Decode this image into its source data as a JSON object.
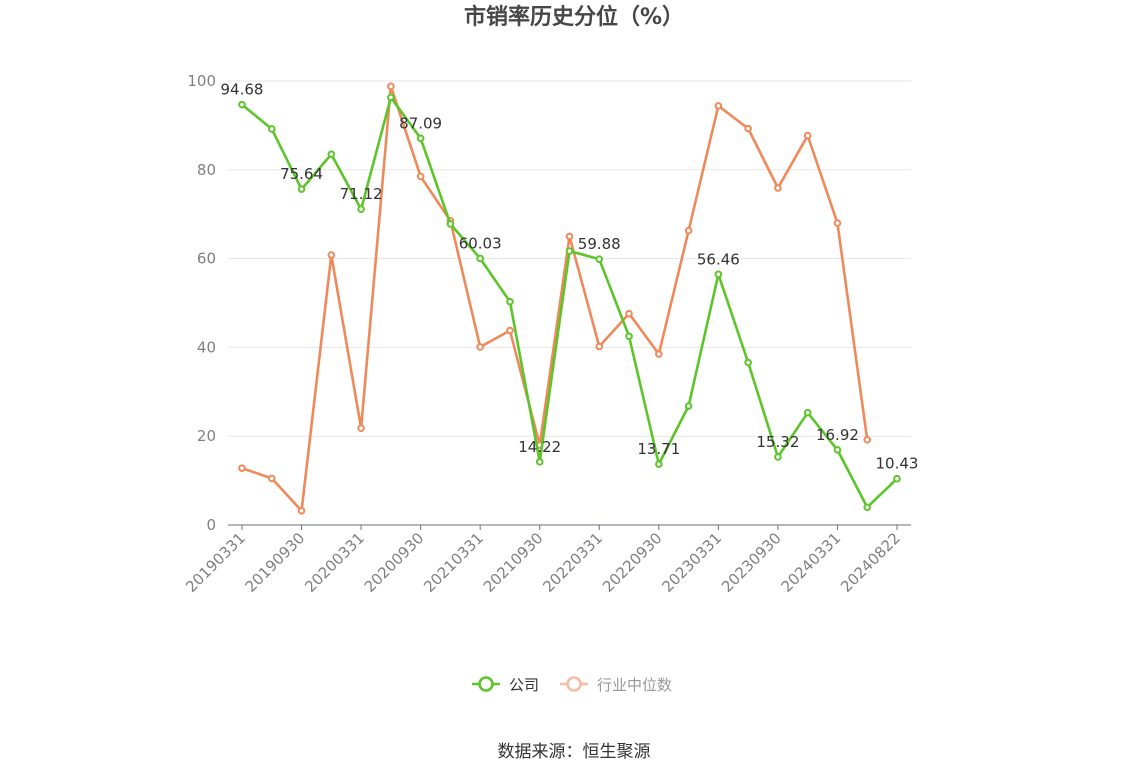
{
  "chart_data": {
    "type": "line",
    "title": "市销率历史分位（%）",
    "xlabel": "",
    "ylabel": "",
    "ylim": [
      0,
      100
    ],
    "yticks": [
      0,
      20,
      40,
      60,
      80,
      100
    ],
    "grid": true,
    "legend_position": "bottom-center",
    "x": [
      "20190331",
      "20190630",
      "20190930",
      "20191231",
      "20200331",
      "20200630",
      "20200930",
      "20201231",
      "20210331",
      "20210630",
      "20210930",
      "20211231",
      "20220331",
      "20220630",
      "20220930",
      "20221231",
      "20230331",
      "20230630",
      "20230930",
      "20231231",
      "20240331",
      "20240630",
      "20240822"
    ],
    "x_tick_labels": [
      "20190331",
      "20190930",
      "20200331",
      "20200930",
      "20210331",
      "20210930",
      "20220331",
      "20220930",
      "20230331",
      "20230930",
      "20240331",
      "20240822"
    ],
    "series": [
      {
        "name": "公司",
        "color": "#5cc52a",
        "values": [
          94.68,
          89.2,
          75.64,
          83.5,
          71.12,
          96.3,
          87.09,
          67.8,
          60.03,
          50.3,
          14.22,
          61.7,
          59.88,
          42.5,
          13.71,
          26.8,
          56.46,
          36.6,
          15.32,
          25.3,
          16.92,
          4.0,
          10.43
        ],
        "labels": {
          "0": "94.68",
          "2": "75.64",
          "4": "71.12",
          "6": "87.09",
          "8": "60.03",
          "10": "14.22",
          "12": "59.88",
          "14": "13.71",
          "16": "56.46",
          "18": "15.32",
          "20": "16.92",
          "22": "10.43"
        }
      },
      {
        "name": "行业中位数",
        "color": "#f0895a",
        "values": [
          12.8,
          10.5,
          3.2,
          60.8,
          21.8,
          98.8,
          78.5,
          68.5,
          40.1,
          43.8,
          18.0,
          65.0,
          40.2,
          47.6,
          38.5,
          66.3,
          94.4,
          89.3,
          75.9,
          87.7,
          68.0,
          19.2,
          null
        ]
      }
    ]
  },
  "footer": {
    "source": "数据来源：恒生聚源"
  }
}
